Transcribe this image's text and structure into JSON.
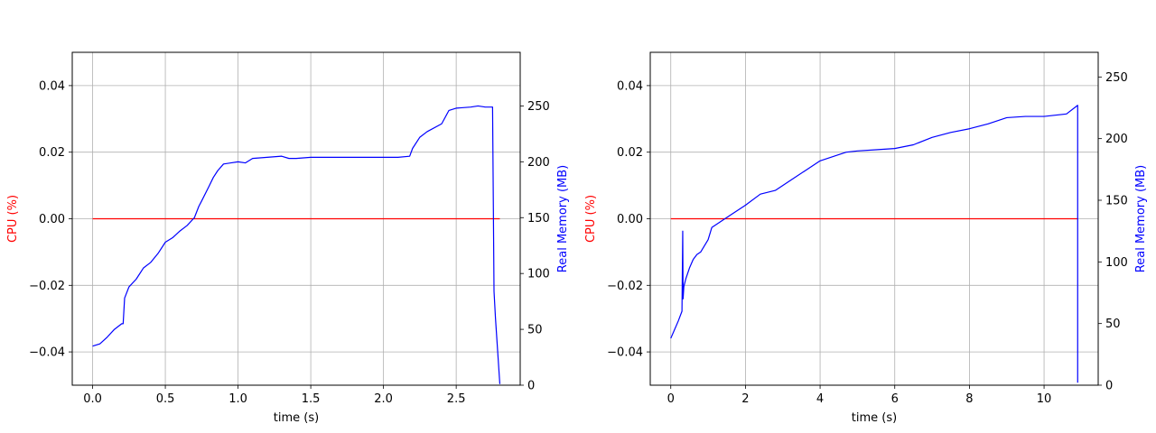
{
  "chart_data": [
    {
      "type": "line",
      "xlabel": "time (s)",
      "ylabel_left": "CPU (%)",
      "ylabel_right": "Real Memory (MB)",
      "xlim": [
        -0.14,
        2.94
      ],
      "xticks": [
        0.0,
        0.5,
        1.0,
        1.5,
        2.0,
        2.5
      ],
      "xtick_labels": [
        "0.0",
        "0.5",
        "1.0",
        "1.5",
        "2.0",
        "2.5"
      ],
      "ylim_left": [
        -0.05,
        0.05
      ],
      "yticks_left": [
        -0.04,
        -0.02,
        0.0,
        0.02,
        0.04
      ],
      "ytick_labels_left": [
        "−0.04",
        "−0.02",
        "0.00",
        "0.02",
        "0.04"
      ],
      "ylim_right": [
        0,
        298
      ],
      "yticks_right": [
        0,
        50,
        100,
        150,
        200,
        250
      ],
      "ytick_labels_right": [
        "0",
        "50",
        "100",
        "150",
        "200",
        "250"
      ],
      "grid": true,
      "colors": {
        "cpu": "#ff0000",
        "memory": "#0000ff",
        "grid": "#b0b0b0"
      },
      "series": [
        {
          "axis": "left",
          "x": [
            0.0,
            2.8
          ],
          "y": [
            0.0,
            0.0
          ]
        },
        {
          "axis": "right",
          "x": [
            0.0,
            0.05,
            0.1,
            0.15,
            0.2,
            0.21,
            0.22,
            0.25,
            0.3,
            0.35,
            0.4,
            0.45,
            0.5,
            0.55,
            0.6,
            0.65,
            0.7,
            0.73,
            0.75,
            0.8,
            0.83,
            0.86,
            0.9,
            1.0,
            1.05,
            1.1,
            1.2,
            1.3,
            1.35,
            1.4,
            1.5,
            1.6,
            1.7,
            1.8,
            1.9,
            2.0,
            2.1,
            2.18,
            2.2,
            2.25,
            2.3,
            2.4,
            2.45,
            2.5,
            2.6,
            2.65,
            2.7,
            2.75,
            2.76,
            2.77,
            2.8
          ],
          "y": [
            35,
            37,
            43,
            50,
            55,
            55,
            78,
            88,
            95,
            105,
            110,
            118,
            128,
            132,
            138,
            143,
            150,
            160,
            165,
            178,
            186,
            192,
            198,
            200,
            199,
            203,
            204,
            205,
            203,
            203,
            204,
            204,
            204,
            204,
            204,
            204,
            204,
            205,
            212,
            222,
            227,
            234,
            246,
            248,
            249,
            250,
            249,
            249,
            84,
            60,
            1
          ]
        }
      ]
    },
    {
      "type": "line",
      "xlabel": "time (s)",
      "ylabel_left": "CPU (%)",
      "ylabel_right": "Real Memory (MB)",
      "xlim": [
        -0.55,
        11.45
      ],
      "xticks": [
        0,
        2,
        4,
        6,
        8,
        10
      ],
      "xtick_labels": [
        "0",
        "2",
        "4",
        "6",
        "8",
        "10"
      ],
      "ylim_left": [
        -0.05,
        0.05
      ],
      "yticks_left": [
        -0.04,
        -0.02,
        0.0,
        0.02,
        0.04
      ],
      "ytick_labels_left": [
        "−0.04",
        "−0.02",
        "0.00",
        "0.02",
        "0.04"
      ],
      "ylim_right": [
        0,
        270
      ],
      "yticks_right": [
        0,
        50,
        100,
        150,
        200,
        250
      ],
      "ytick_labels_right": [
        "0",
        "50",
        "100",
        "150",
        "200",
        "250"
      ],
      "grid": true,
      "colors": {
        "cpu": "#ff0000",
        "memory": "#0000ff",
        "grid": "#b0b0b0"
      },
      "series": [
        {
          "axis": "left",
          "x": [
            0.0,
            10.9
          ],
          "y": [
            0.0,
            0.0
          ]
        },
        {
          "axis": "right",
          "x": [
            0.0,
            0.1,
            0.2,
            0.3,
            0.32,
            0.33,
            0.35,
            0.4,
            0.5,
            0.6,
            0.7,
            0.8,
            1.0,
            1.1,
            1.3,
            1.6,
            2.0,
            2.4,
            2.8,
            3.2,
            3.6,
            4.0,
            4.4,
            4.7,
            5.0,
            5.5,
            6.0,
            6.5,
            7.0,
            7.5,
            8.0,
            8.5,
            9.0,
            9.5,
            10.0,
            10.3,
            10.6,
            10.9,
            10.9
          ],
          "y": [
            38,
            45,
            52,
            60,
            125,
            70,
            80,
            86,
            95,
            102,
            106,
            108,
            118,
            128,
            132,
            138,
            146,
            155,
            158,
            166,
            174,
            182,
            186,
            189,
            190,
            191,
            192,
            195,
            201,
            205,
            208,
            212,
            217,
            218,
            218,
            219,
            220,
            227,
            2
          ]
        }
      ]
    }
  ]
}
